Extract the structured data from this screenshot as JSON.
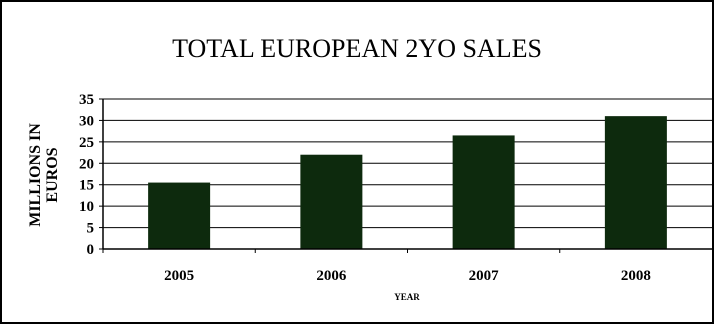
{
  "chart_data": {
    "type": "bar",
    "title": "TOTAL EUROPEAN 2YO SALES",
    "xlabel": "YEAR",
    "ylabel": "MILLIONS IN EUROS",
    "ylabel_lines": [
      "MILLIONS IN",
      "EUROS"
    ],
    "categories": [
      "2005",
      "2006",
      "2007",
      "2008"
    ],
    "values": [
      15.5,
      22,
      26.5,
      31
    ],
    "ylim": [
      0,
      35
    ],
    "yticks": [
      "0",
      "5",
      "10",
      "15",
      "20",
      "25",
      "30",
      "35"
    ],
    "grid": true,
    "legend": "none",
    "colors": {
      "bar": "#0d2a0d",
      "grid": "#000000",
      "axis": "#000000",
      "text": "#000000"
    }
  }
}
